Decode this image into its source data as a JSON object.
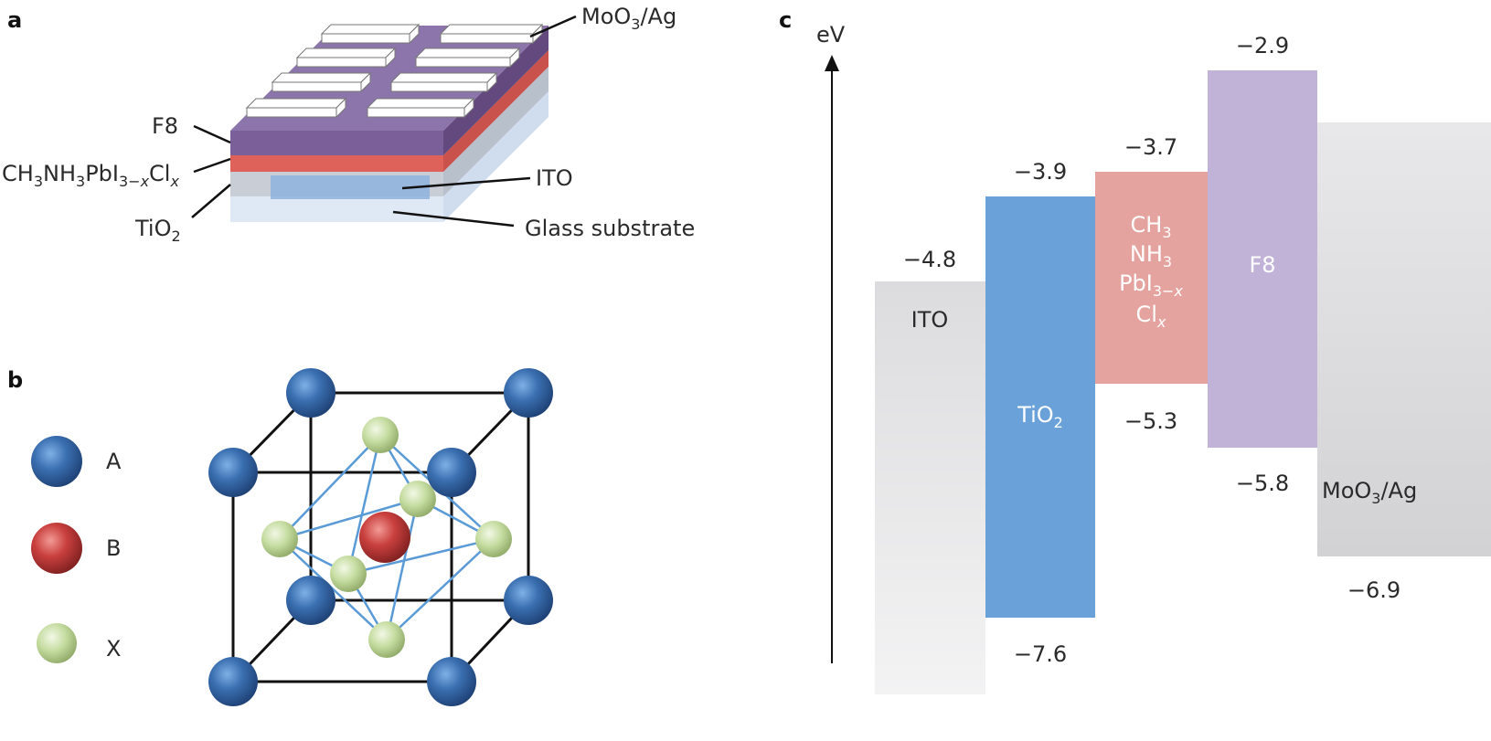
{
  "panels": {
    "a": "a",
    "b": "b",
    "c": "c"
  },
  "device": {
    "labels": {
      "moo3_ag": "MoO3/Ag",
      "f8": "F8",
      "perovskite": "CH3NH3PbI3−xClx",
      "tio2": "TiO2",
      "ito": "ITO",
      "glass": "Glass substrate"
    }
  },
  "crystal": {
    "legend": [
      {
        "label": "A",
        "color": "#3a6fb0"
      },
      {
        "label": "B",
        "color": "#c9403e"
      },
      {
        "label": "X",
        "color": "#c5dca0"
      }
    ]
  },
  "energy": {
    "axis_label": "eV",
    "materials": [
      {
        "name": "ITO",
        "top": -4.8,
        "bottom": null,
        "top_label": "−4.8",
        "bottom_label": "",
        "color": "#e4e4e6"
      },
      {
        "name": "TiO2",
        "top": -3.9,
        "bottom": -7.6,
        "top_label": "−3.9",
        "bottom_label": "−7.6",
        "color": "#6aa1d8"
      },
      {
        "name": "CH3NH3PbI3−xClx",
        "top": -3.7,
        "bottom": -5.3,
        "top_label": "−3.7",
        "bottom_label": "−5.3",
        "color": "#e5a3a0"
      },
      {
        "name": "F8",
        "top": -2.9,
        "bottom": -5.8,
        "top_label": "−2.9",
        "bottom_label": "−5.8",
        "color": "#c1b3d8"
      },
      {
        "name": "MoO3/Ag",
        "top": null,
        "bottom": -6.9,
        "top_label": "",
        "bottom_label": "−6.9",
        "color": "#e4e4e6"
      }
    ]
  }
}
